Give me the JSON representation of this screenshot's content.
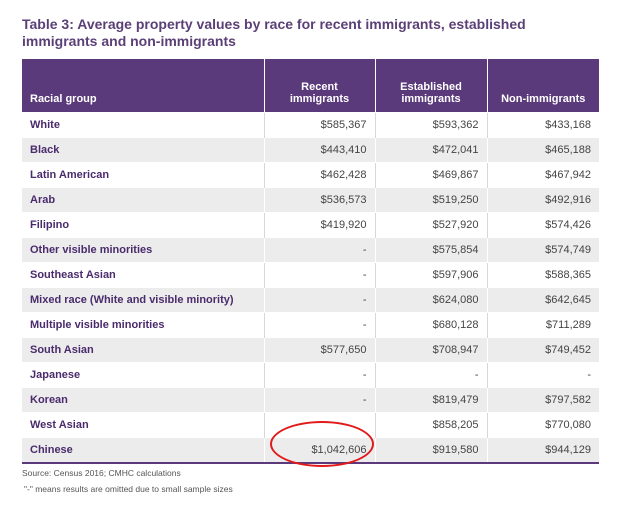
{
  "title": "Table 3: Average property values by race for recent immigrants, established immigrants and non-immigrants",
  "headers": {
    "racial_group": "Racial group",
    "recent": "Recent immigrants",
    "established": "Established immigrants",
    "non_immigrants": "Non-immigrants"
  },
  "rows": [
    {
      "group": "White",
      "recent": "$585,367",
      "established": "$593,362",
      "non_immigrants": "$433,168"
    },
    {
      "group": "Black",
      "recent": "$443,410",
      "established": "$472,041",
      "non_immigrants": "$465,188"
    },
    {
      "group": "Latin American",
      "recent": "$462,428",
      "established": "$469,867",
      "non_immigrants": "$467,942"
    },
    {
      "group": "Arab",
      "recent": "$536,573",
      "established": "$519,250",
      "non_immigrants": "$492,916"
    },
    {
      "group": "Filipino",
      "recent": "$419,920",
      "established": "$527,920",
      "non_immigrants": "$574,426"
    },
    {
      "group": "Other visible minorities",
      "recent": "-",
      "established": "$575,854",
      "non_immigrants": "$574,749"
    },
    {
      "group": "Southeast Asian",
      "recent": "-",
      "established": "$597,906",
      "non_immigrants": "$588,365"
    },
    {
      "group": "Mixed race (White and visible minority)",
      "recent": "-",
      "established": "$624,080",
      "non_immigrants": "$642,645"
    },
    {
      "group": "Multiple visible minorities",
      "recent": "-",
      "established": "$680,128",
      "non_immigrants": "$711,289"
    },
    {
      "group": "South Asian",
      "recent": "$577,650",
      "established": "$708,947",
      "non_immigrants": "$749,452"
    },
    {
      "group": "Japanese",
      "recent": "-",
      "established": "-",
      "non_immigrants": "-"
    },
    {
      "group": "Korean",
      "recent": "-",
      "established": "$819,479",
      "non_immigrants": "$797,582"
    },
    {
      "group": "West Asian",
      "recent": "",
      "established": "$858,205",
      "non_immigrants": "$770,080"
    },
    {
      "group": "Chinese",
      "recent": "$1,042,606",
      "established": "$919,580",
      "non_immigrants": "$944,129"
    }
  ],
  "source": "Source: Census 2016; CMHC calculations",
  "note": "\"-\" means results are omitted due to small sample sizes",
  "colors": {
    "header_bg": "#5a3a7b",
    "title": "#5b3f77",
    "group_text": "#4a2b6c",
    "highlight": "#e01b1b"
  }
}
